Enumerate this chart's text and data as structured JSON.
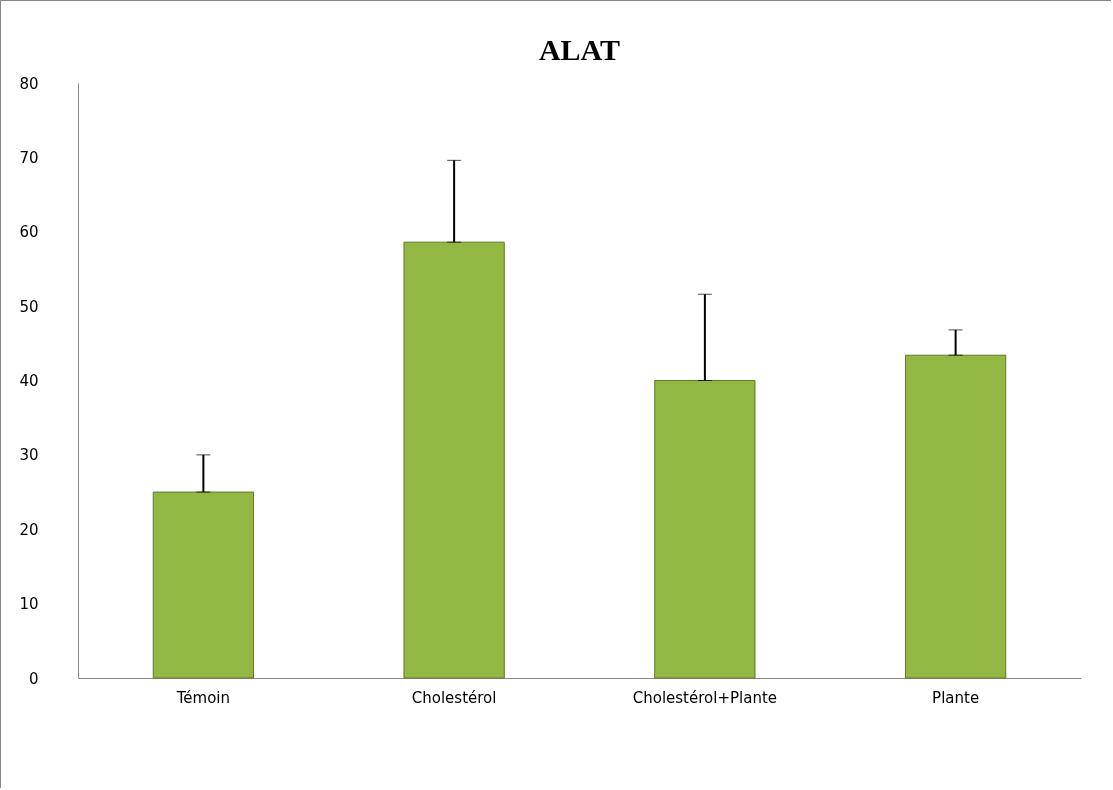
{
  "chart_data": {
    "type": "bar",
    "title": "ALAT",
    "categories": [
      "Témoin",
      "Cholestérol",
      "Cholestérol+Plante",
      "Plante"
    ],
    "values": [
      25,
      58.6,
      40,
      43.4
    ],
    "errors": [
      5,
      11,
      11.6,
      3.4
    ],
    "color": "#92b843",
    "ylim": [
      0,
      80
    ],
    "yticks": [
      0,
      10,
      20,
      30,
      40,
      50,
      60,
      70,
      80
    ],
    "grid": false
  }
}
